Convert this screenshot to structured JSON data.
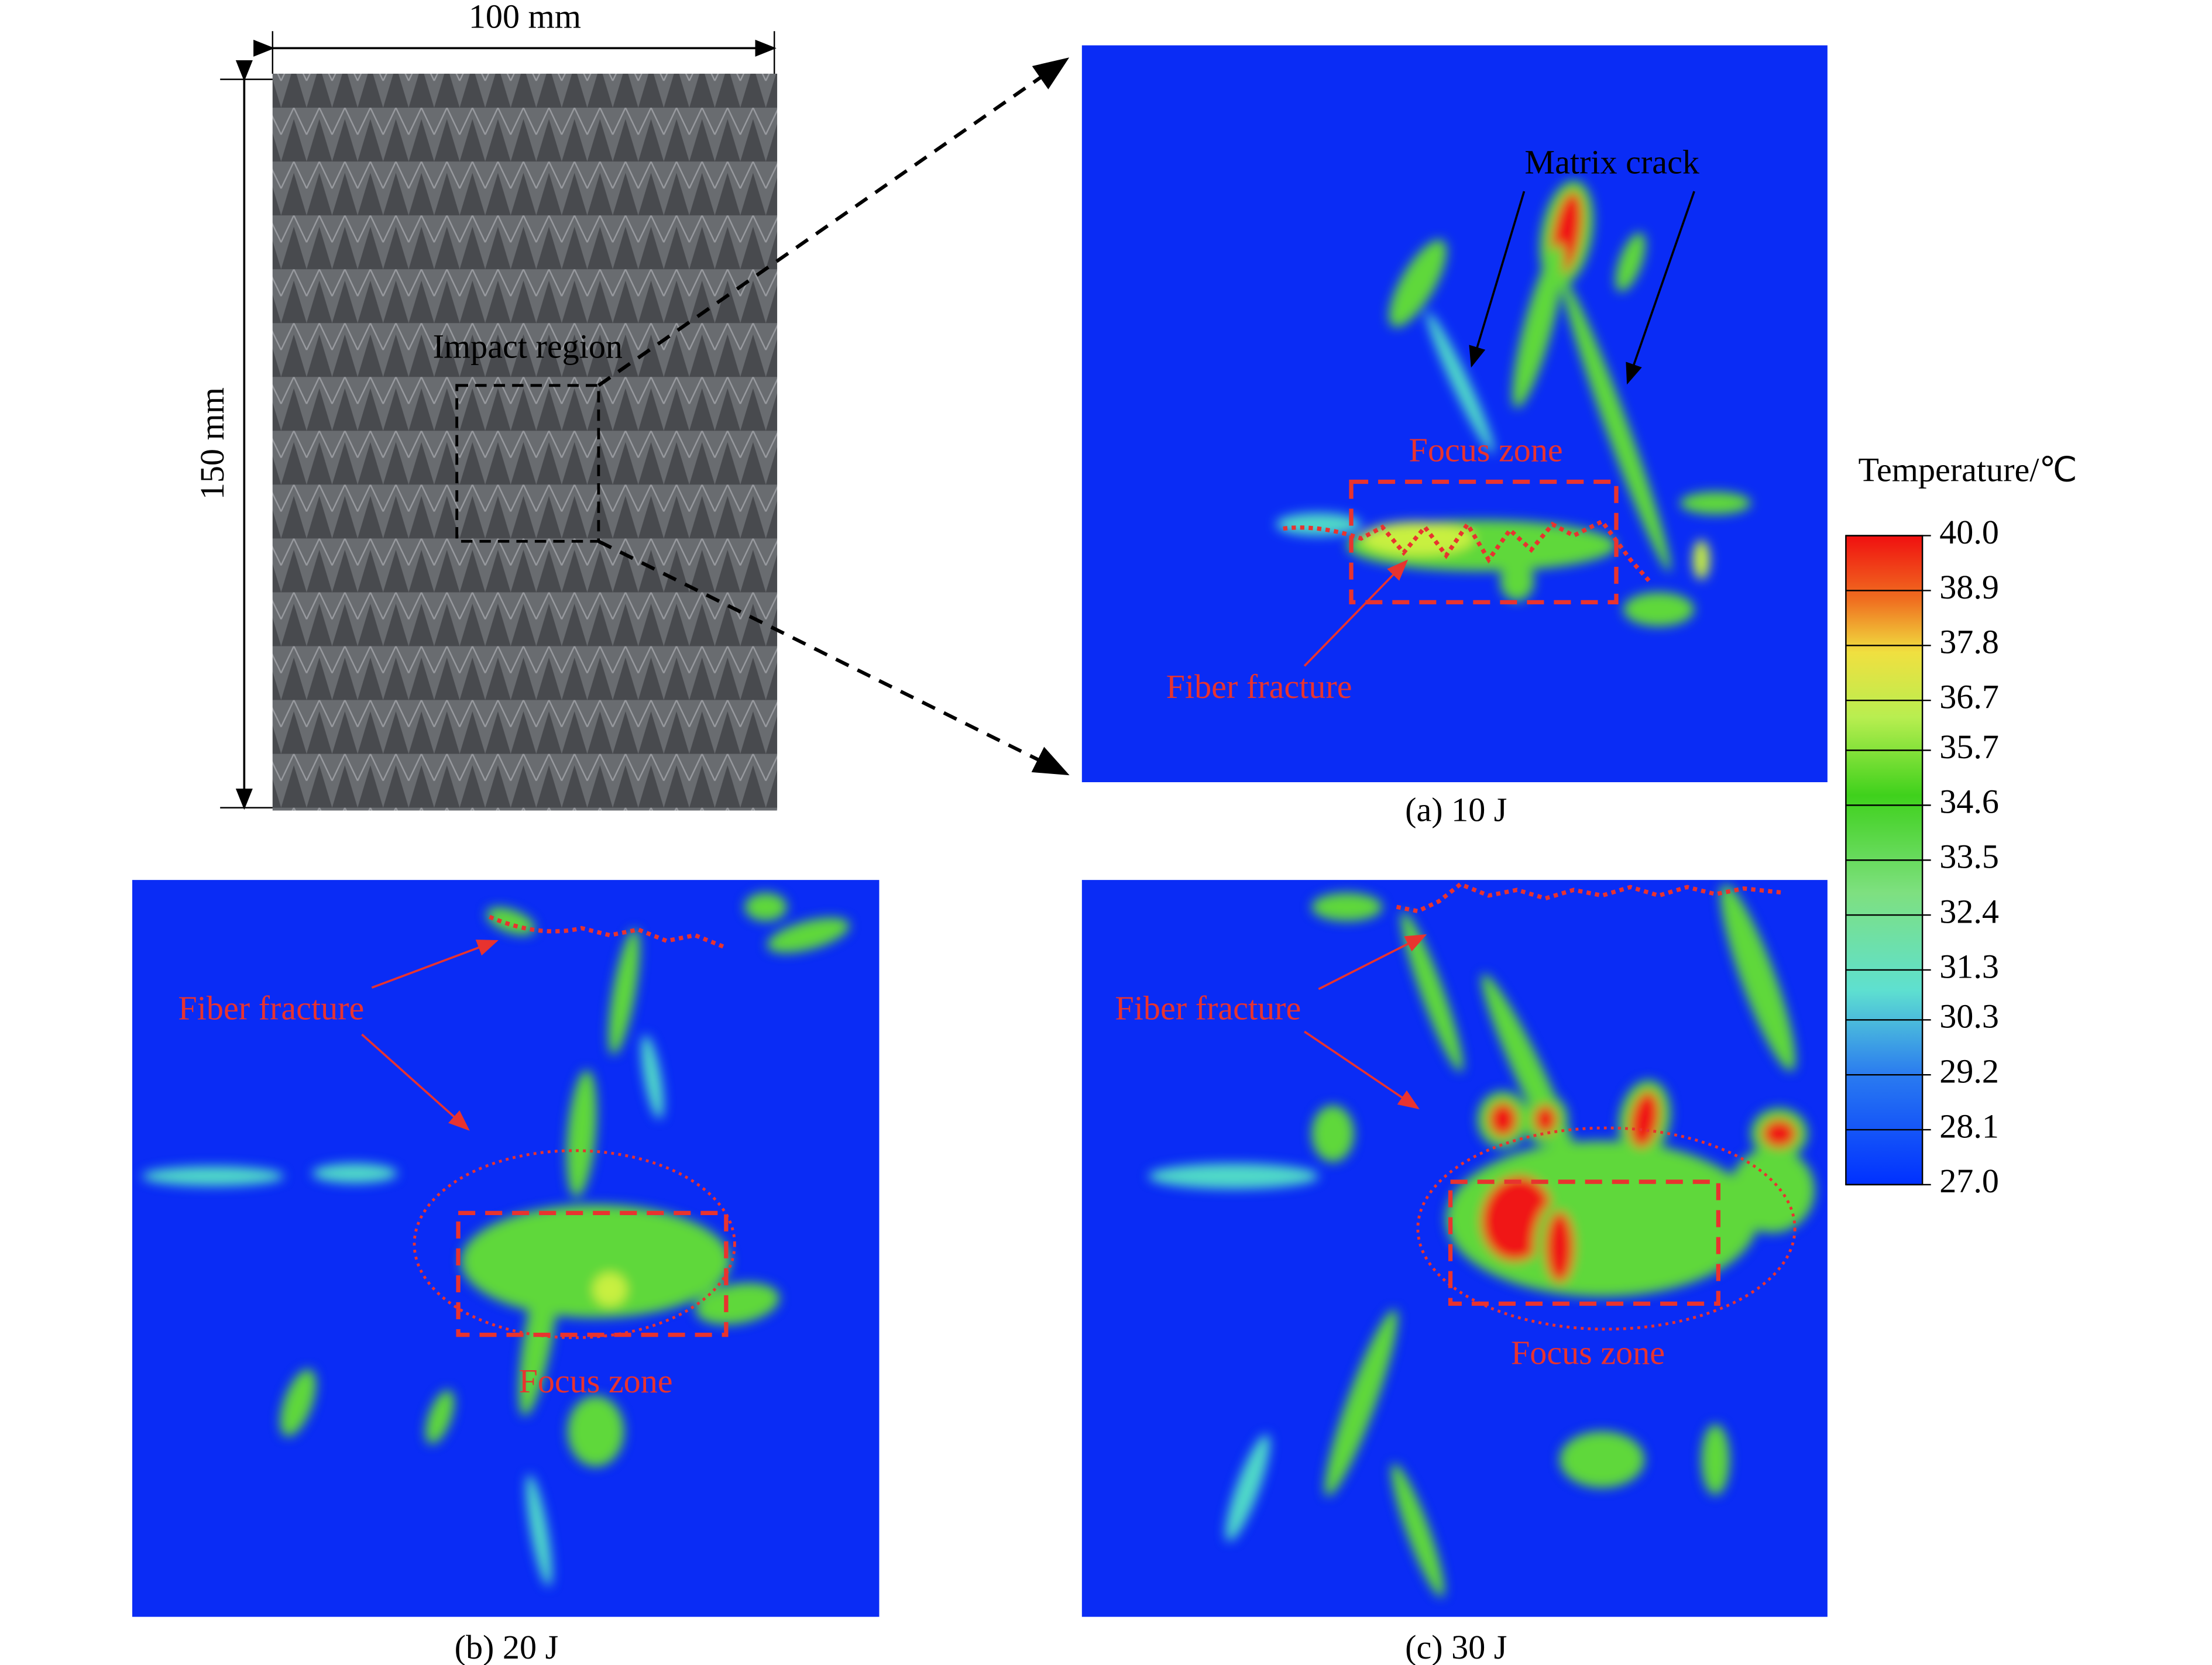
{
  "specimen": {
    "width_label": "100 mm",
    "height_label": "150 mm",
    "region_label": "Impact region"
  },
  "panels": [
    {
      "caption": "(a) 10 J",
      "annotations": [
        "Matrix crack",
        "Focus zone",
        "Fiber fracture"
      ]
    },
    {
      "caption": "(b) 20 J",
      "annotations": [
        "Fiber fracture",
        "Focus zone"
      ]
    },
    {
      "caption": "(c) 30 J",
      "annotations": [
        "Fiber fracture",
        "Focus zone"
      ]
    }
  ],
  "colorbar": {
    "title": "Temperature/℃",
    "lim": [
      27,
      40
    ],
    "ticks": [
      {
        "value": 40,
        "label": "40.0"
      },
      {
        "value": 38.9,
        "label": "38.9"
      },
      {
        "value": 37.8,
        "label": "37.8"
      },
      {
        "value": 36.7,
        "label": "36.7"
      },
      {
        "value": 35.7,
        "label": "35.7"
      },
      {
        "value": 34.6,
        "label": "34.6"
      },
      {
        "value": 33.5,
        "label": "33.5"
      },
      {
        "value": 32.4,
        "label": "32.4"
      },
      {
        "value": 31.3,
        "label": "31.3"
      },
      {
        "value": 30.3,
        "label": "30.3"
      },
      {
        "value": 29.2,
        "label": "29.2"
      },
      {
        "value": 28.1,
        "label": "28.1"
      },
      {
        "value": 27,
        "label": "27.0"
      }
    ]
  }
}
